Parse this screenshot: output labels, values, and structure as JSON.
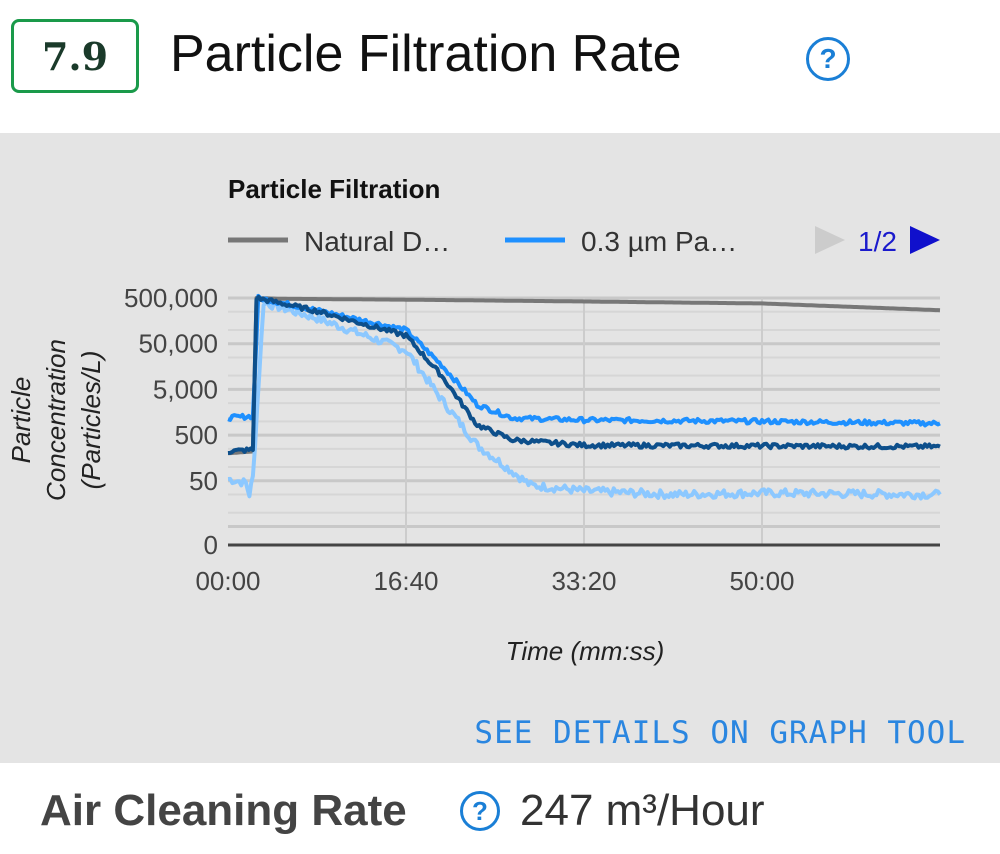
{
  "header": {
    "score": "7.9",
    "title": "Particle Filtration Rate",
    "help_icon": "question-circle-icon"
  },
  "chart_data": {
    "type": "line",
    "title": "Particle Filtration",
    "xlabel": "Time (mm:ss)",
    "ylabel_lines": [
      "Particle",
      "Concentration",
      "(Particles/L)"
    ],
    "y_scale": "log",
    "y_ticks": [
      "500,000",
      "50,000",
      "5,000",
      "500",
      "50",
      "0"
    ],
    "x_ticks": [
      "00:00",
      "16:40",
      "33:20",
      "50:00"
    ],
    "x_range_seconds": [
      0,
      4000
    ],
    "grid": true,
    "legend": {
      "position": "top",
      "page": "1/2",
      "entries": [
        "Natural D…",
        "0.3 µm Pa…"
      ]
    },
    "series": [
      {
        "name": "Natural D…",
        "color": "#777777",
        "points": [
          [
            0,
            200
          ],
          [
            140,
            220
          ],
          [
            160,
            500000
          ],
          [
            300,
            480000
          ],
          [
            1000,
            460000
          ],
          [
            2000,
            420000
          ],
          [
            3000,
            380000
          ],
          [
            4000,
            270000
          ]
        ]
      },
      {
        "color": "#8cc8ff",
        "points": [
          [
            0,
            55
          ],
          [
            100,
            45
          ],
          [
            120,
            25
          ],
          [
            140,
            60
          ],
          [
            200,
            400000
          ],
          [
            500,
            180000
          ],
          [
            1000,
            36000
          ],
          [
            1200,
            3000
          ],
          [
            1400,
            300
          ],
          [
            1700,
            40
          ],
          [
            2000,
            30
          ],
          [
            2500,
            25
          ],
          [
            3000,
            27
          ],
          [
            3500,
            26
          ],
          [
            4000,
            25
          ]
        ]
      },
      {
        "name": "0.3 µm Pa…",
        "color": "#1e90ff",
        "points": [
          [
            0,
            1200
          ],
          [
            140,
            1300
          ],
          [
            170,
            500000
          ],
          [
            500,
            270000
          ],
          [
            1000,
            100000
          ],
          [
            1200,
            17000
          ],
          [
            1400,
            2300
          ],
          [
            1600,
            1180
          ],
          [
            2000,
            1070
          ],
          [
            3000,
            1000
          ],
          [
            4000,
            900
          ]
        ]
      },
      {
        "color": "#0d4f8b",
        "points": [
          [
            0,
            220
          ],
          [
            140,
            240
          ],
          [
            160,
            500000
          ],
          [
            500,
            260000
          ],
          [
            1000,
            75000
          ],
          [
            1200,
            10000
          ],
          [
            1400,
            830
          ],
          [
            1600,
            390
          ],
          [
            2000,
            300
          ],
          [
            3000,
            290
          ],
          [
            4000,
            280
          ]
        ]
      }
    ]
  },
  "panel": {
    "details_link": "SEE DETAILS ON GRAPH TOOL"
  },
  "footer": {
    "label": "Air Cleaning Rate",
    "value": "247 m³/Hour"
  }
}
